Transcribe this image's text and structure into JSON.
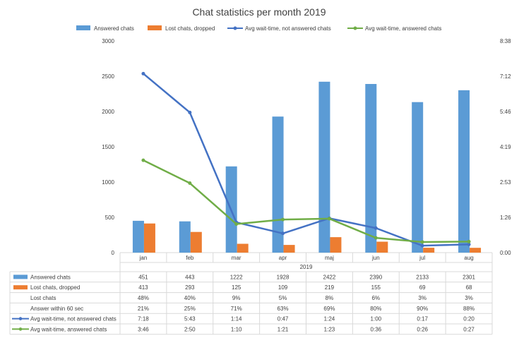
{
  "chart_data": {
    "type": "bar",
    "title": "Chat statistics per month 2019",
    "year_label": "2019",
    "categories": [
      "jan",
      "feb",
      "mar",
      "apr",
      "maj",
      "jun",
      "jul",
      "aug"
    ],
    "y_left": {
      "ylim": [
        0,
        3000
      ],
      "ticks": [
        "0",
        "500",
        "1000",
        "1500",
        "2000",
        "2500",
        "3000"
      ]
    },
    "y_right": {
      "ylim_seconds": [
        0,
        518
      ],
      "ticks": [
        "0:00",
        "1:26",
        "2:53",
        "4:19",
        "5:46",
        "7:12",
        "8:38"
      ]
    },
    "grid": false,
    "legend_position": "top",
    "bars": [
      {
        "name": "Answered chats",
        "color": "#5b9bd5",
        "values": [
          451,
          443,
          1222,
          1928,
          2422,
          2390,
          2133,
          2301
        ]
      },
      {
        "name": "Lost chats, dropped",
        "color": "#ed7d31",
        "values": [
          413,
          293,
          125,
          109,
          219,
          155,
          69,
          68
        ]
      }
    ],
    "lines": [
      {
        "name": "Avg wait-time, not answered chats",
        "color": "#4472c4",
        "values_seconds": [
          438,
          343,
          74,
          47,
          84,
          60,
          17,
          20
        ]
      },
      {
        "name": "Avg wait-time, answered chats",
        "color": "#70ad47",
        "values_seconds": [
          226,
          170,
          70,
          81,
          83,
          36,
          26,
          27
        ]
      }
    ],
    "table": {
      "rows": [
        {
          "label": "Answered chats",
          "marker": "bar",
          "color": "#5b9bd5",
          "cells": [
            "451",
            "443",
            "1222",
            "1928",
            "2422",
            "2390",
            "2133",
            "2301"
          ]
        },
        {
          "label": "Lost chats, dropped",
          "marker": "bar",
          "color": "#ed7d31",
          "cells": [
            "413",
            "293",
            "125",
            "109",
            "219",
            "155",
            "69",
            "68"
          ]
        },
        {
          "label": "Lost chats",
          "marker": "none",
          "color": "",
          "cells": [
            "48%",
            "40%",
            "9%",
            "5%",
            "8%",
            "6%",
            "3%",
            "3%"
          ]
        },
        {
          "label": "Answer within 60 sec",
          "marker": "none",
          "color": "",
          "cells": [
            "21%",
            "25%",
            "71%",
            "63%",
            "69%",
            "80%",
            "90%",
            "88%"
          ]
        },
        {
          "label": "Avg wait-time, not answered chats",
          "marker": "line",
          "color": "#4472c4",
          "cells": [
            "7:18",
            "5:43",
            "1:14",
            "0:47",
            "1:24",
            "1:00",
            "0:17",
            "0:20"
          ]
        },
        {
          "label": "Avg wait-time, answered chats",
          "marker": "line",
          "color": "#70ad47",
          "cells": [
            "3:46",
            "2:50",
            "1:10",
            "1:21",
            "1:23",
            "0:36",
            "0:26",
            "0:27"
          ]
        }
      ]
    }
  }
}
